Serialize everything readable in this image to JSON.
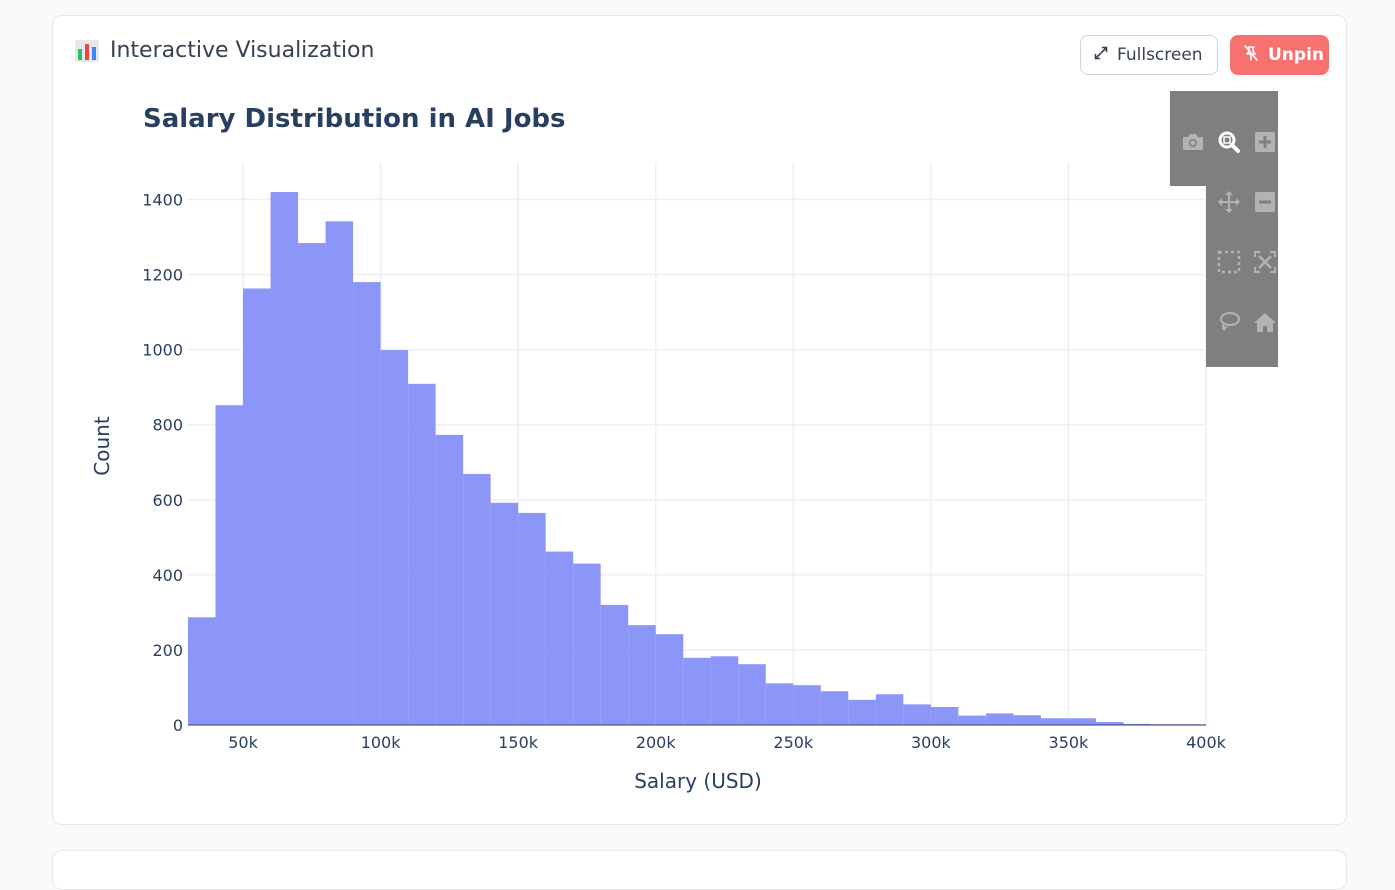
{
  "header": {
    "title": "Interactive Visualization",
    "icon": "bar-chart-icon",
    "buttons": {
      "fullscreen_label": "Fullscreen",
      "unpin_label": "Unpin"
    }
  },
  "colors": {
    "bar": "#8c96f8",
    "unpin_button": "#f87171",
    "title": "#2a3f5f",
    "modebar_bg": "#7f7f7f"
  },
  "modebar": {
    "icons": [
      "camera-icon",
      "zoom-icon",
      "zoom-in-icon",
      "pan-icon",
      "zoom-out-icon",
      "box-select-icon",
      "autoscale-icon",
      "lasso-select-icon",
      "reset-axes-icon"
    ]
  },
  "chart_data": {
    "type": "bar",
    "title": "Salary Distribution in AI Jobs",
    "xlabel": "Salary (USD)",
    "ylabel": "Count",
    "xlim": [
      30000,
      400000
    ],
    "ylim": [
      0,
      1500
    ],
    "x_ticks": [
      {
        "value": 50000,
        "label": "50k"
      },
      {
        "value": 100000,
        "label": "100k"
      },
      {
        "value": 150000,
        "label": "150k"
      },
      {
        "value": 200000,
        "label": "200k"
      },
      {
        "value": 250000,
        "label": "250k"
      },
      {
        "value": 300000,
        "label": "300k"
      },
      {
        "value": 350000,
        "label": "350k"
      },
      {
        "value": 400000,
        "label": "400k"
      }
    ],
    "y_ticks": [
      {
        "value": 0,
        "label": "0"
      },
      {
        "value": 200,
        "label": "200"
      },
      {
        "value": 400,
        "label": "400"
      },
      {
        "value": 600,
        "label": "600"
      },
      {
        "value": 800,
        "label": "800"
      },
      {
        "value": 1000,
        "label": "1000"
      },
      {
        "value": 1200,
        "label": "1200"
      },
      {
        "value": 1400,
        "label": "1400"
      }
    ],
    "bin_width": 10000,
    "bin_starts": [
      30000,
      40000,
      50000,
      60000,
      70000,
      80000,
      90000,
      100000,
      110000,
      120000,
      130000,
      140000,
      150000,
      160000,
      170000,
      180000,
      190000,
      200000,
      210000,
      220000,
      230000,
      240000,
      250000,
      260000,
      270000,
      280000,
      290000,
      300000,
      310000,
      320000,
      330000,
      340000,
      350000,
      360000,
      370000,
      380000,
      390000
    ],
    "values": [
      287,
      852,
      1163,
      1420,
      1284,
      1342,
      1180,
      999,
      909,
      773,
      669,
      592,
      565,
      462,
      430,
      320,
      266,
      242,
      179,
      183,
      162,
      111,
      106,
      90,
      67,
      82,
      55,
      48,
      25,
      31,
      26,
      18,
      18,
      8,
      3,
      2,
      2
    ],
    "grid": true,
    "legend": "none"
  }
}
